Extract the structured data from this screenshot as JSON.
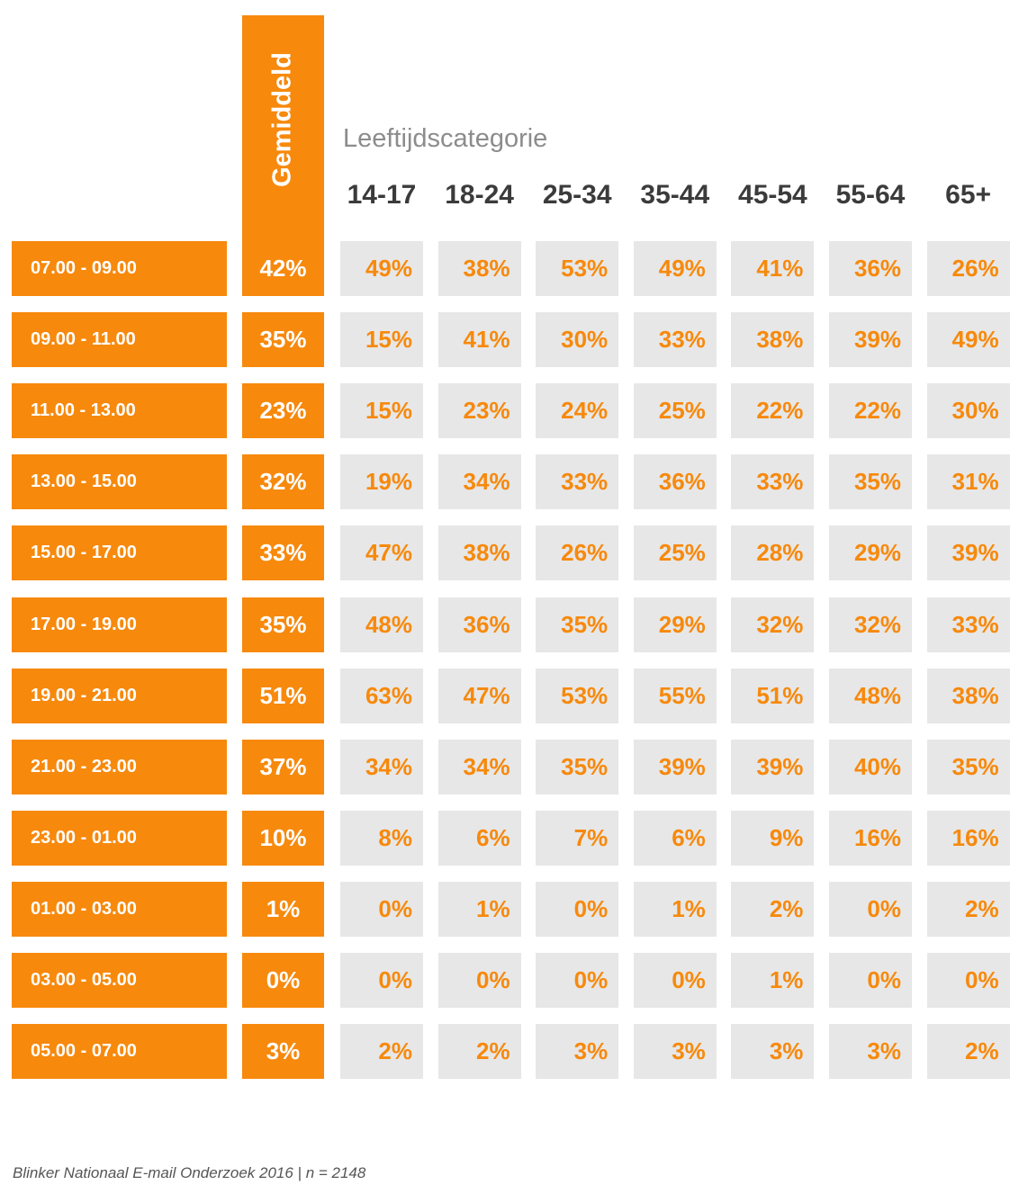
{
  "chart_data": {
    "type": "table",
    "title": "",
    "average_label": "Gemiddeld",
    "group_label": "Leeftijdscategorie",
    "columns": [
      "14-17",
      "18-24",
      "25-34",
      "35-44",
      "45-54",
      "55-64",
      "65+"
    ],
    "rows": [
      {
        "label": "07.00 - 09.00",
        "average": "42%",
        "values": [
          "49%",
          "38%",
          "53%",
          "49%",
          "41%",
          "36%",
          "26%"
        ]
      },
      {
        "label": "09.00 - 11.00",
        "average": "35%",
        "values": [
          "15%",
          "41%",
          "30%",
          "33%",
          "38%",
          "39%",
          "49%"
        ]
      },
      {
        "label": "11.00 - 13.00",
        "average": "23%",
        "values": [
          "15%",
          "23%",
          "24%",
          "25%",
          "22%",
          "22%",
          "30%"
        ]
      },
      {
        "label": "13.00 - 15.00",
        "average": "32%",
        "values": [
          "19%",
          "34%",
          "33%",
          "36%",
          "33%",
          "35%",
          "31%"
        ]
      },
      {
        "label": "15.00 - 17.00",
        "average": "33%",
        "values": [
          "47%",
          "38%",
          "26%",
          "25%",
          "28%",
          "29%",
          "39%"
        ]
      },
      {
        "label": "17.00 - 19.00",
        "average": "35%",
        "values": [
          "48%",
          "36%",
          "35%",
          "29%",
          "32%",
          "32%",
          "33%"
        ]
      },
      {
        "label": "19.00 - 21.00",
        "average": "51%",
        "values": [
          "63%",
          "47%",
          "53%",
          "55%",
          "51%",
          "48%",
          "38%"
        ]
      },
      {
        "label": "21.00 - 23.00",
        "average": "37%",
        "values": [
          "34%",
          "34%",
          "35%",
          "39%",
          "39%",
          "40%",
          "35%"
        ]
      },
      {
        "label": "23.00 - 01.00",
        "average": "10%",
        "values": [
          "8%",
          "6%",
          "7%",
          "6%",
          "9%",
          "16%",
          "16%"
        ]
      },
      {
        "label": "01.00 - 03.00",
        "average": "1%",
        "values": [
          "0%",
          "1%",
          "0%",
          "1%",
          "2%",
          "0%",
          "2%"
        ]
      },
      {
        "label": "03.00 - 05.00",
        "average": "0%",
        "values": [
          "0%",
          "0%",
          "0%",
          "0%",
          "1%",
          "0%",
          "0%"
        ]
      },
      {
        "label": "05.00 - 07.00",
        "average": "3%",
        "values": [
          "2%",
          "2%",
          "3%",
          "3%",
          "3%",
          "3%",
          "2%"
        ]
      }
    ],
    "source": "Blinker Nationaal E-mail Onderzoek 2016 | n = 2148"
  },
  "colors": {
    "accent": "#f7890c",
    "cell_bg": "#e7e7e7",
    "header_text": "#3b3b3b",
    "subheader_text": "#8c8c8c"
  }
}
